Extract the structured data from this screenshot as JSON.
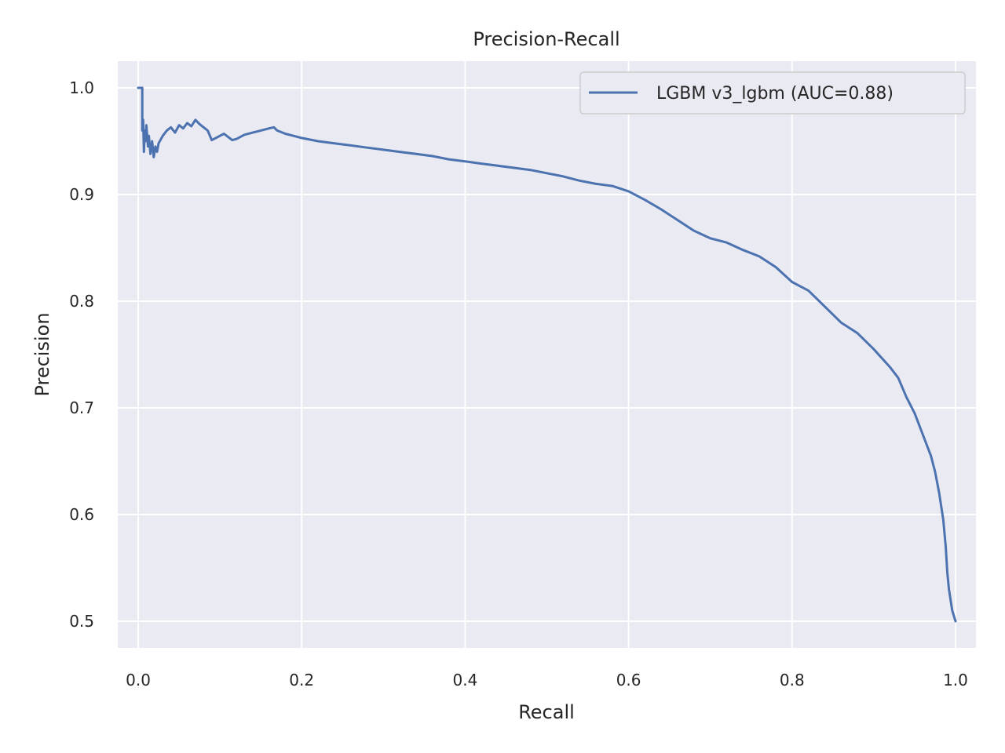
{
  "chart_data": {
    "type": "line",
    "title": "Precision-Recall",
    "xlabel": "Recall",
    "ylabel": "Precision",
    "xlim": [
      -0.025,
      1.025
    ],
    "ylim": [
      0.475,
      1.025
    ],
    "xticks": [
      0.0,
      0.2,
      0.4,
      0.6,
      0.8,
      1.0
    ],
    "xtick_labels": [
      "0.0",
      "0.2",
      "0.4",
      "0.6",
      "0.8",
      "1.0"
    ],
    "yticks": [
      0.5,
      0.6,
      0.7,
      0.8,
      0.9,
      1.0
    ],
    "ytick_labels": [
      "0.5",
      "0.6",
      "0.7",
      "0.8",
      "0.9",
      "1.0"
    ],
    "grid": true,
    "legend_position": "top-right",
    "series": [
      {
        "name": "LGBM v3_lgbm (AUC=0.88)",
        "color": "#4c72b0",
        "x": [
          0.0,
          0.005,
          0.005,
          0.006,
          0.007,
          0.008,
          0.009,
          0.01,
          0.012,
          0.013,
          0.015,
          0.017,
          0.019,
          0.021,
          0.023,
          0.025,
          0.03,
          0.035,
          0.04,
          0.045,
          0.05,
          0.055,
          0.06,
          0.065,
          0.07,
          0.075,
          0.08,
          0.085,
          0.09,
          0.095,
          0.1,
          0.105,
          0.11,
          0.115,
          0.12,
          0.125,
          0.13,
          0.14,
          0.15,
          0.16,
          0.166,
          0.17,
          0.18,
          0.19,
          0.2,
          0.22,
          0.24,
          0.26,
          0.28,
          0.3,
          0.32,
          0.34,
          0.36,
          0.38,
          0.4,
          0.42,
          0.44,
          0.46,
          0.48,
          0.5,
          0.52,
          0.54,
          0.56,
          0.58,
          0.6,
          0.62,
          0.64,
          0.66,
          0.68,
          0.7,
          0.72,
          0.74,
          0.76,
          0.78,
          0.8,
          0.82,
          0.84,
          0.86,
          0.88,
          0.9,
          0.92,
          0.93,
          0.94,
          0.95,
          0.96,
          0.97,
          0.975,
          0.98,
          0.985,
          0.988,
          0.99,
          0.992,
          0.994,
          0.996,
          0.998,
          1.0
        ],
        "y": [
          1.0,
          1.0,
          0.96,
          0.97,
          0.94,
          0.96,
          0.95,
          0.965,
          0.945,
          0.955,
          0.938,
          0.95,
          0.935,
          0.945,
          0.94,
          0.948,
          0.955,
          0.96,
          0.963,
          0.958,
          0.965,
          0.962,
          0.967,
          0.964,
          0.97,
          0.966,
          0.963,
          0.96,
          0.951,
          0.953,
          0.955,
          0.957,
          0.954,
          0.951,
          0.952,
          0.954,
          0.956,
          0.958,
          0.96,
          0.962,
          0.963,
          0.96,
          0.957,
          0.955,
          0.953,
          0.95,
          0.948,
          0.946,
          0.944,
          0.942,
          0.94,
          0.938,
          0.936,
          0.933,
          0.931,
          0.929,
          0.927,
          0.925,
          0.923,
          0.92,
          0.917,
          0.913,
          0.91,
          0.908,
          0.903,
          0.895,
          0.886,
          0.876,
          0.866,
          0.859,
          0.855,
          0.848,
          0.842,
          0.832,
          0.818,
          0.81,
          0.795,
          0.78,
          0.77,
          0.755,
          0.738,
          0.728,
          0.71,
          0.695,
          0.675,
          0.655,
          0.64,
          0.62,
          0.595,
          0.57,
          0.545,
          0.53,
          0.52,
          0.51,
          0.505,
          0.5
        ]
      }
    ]
  }
}
